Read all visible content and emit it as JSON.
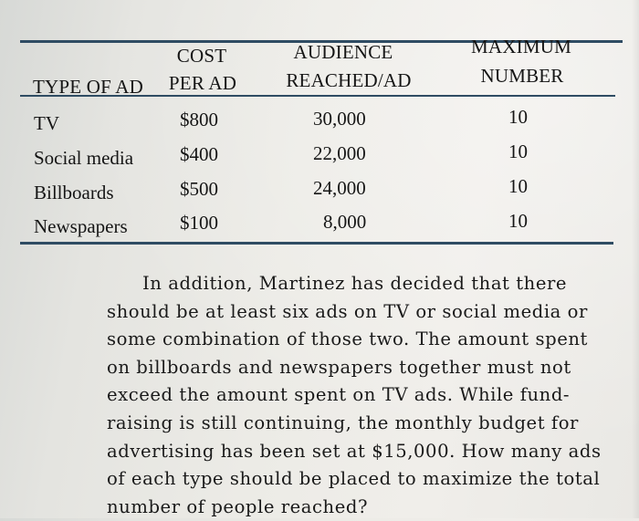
{
  "table": {
    "headers": {
      "type": [
        "TYPE OF AD"
      ],
      "cost": [
        "COST",
        "PER AD"
      ],
      "audience": [
        "AUDIENCE",
        "REACHED/AD"
      ],
      "maximum": [
        "MAXIMUM",
        "NUMBER"
      ]
    },
    "rows": [
      {
        "type": "TV",
        "cost": "$800",
        "audience": "30,000",
        "max": "10"
      },
      {
        "type": "Social media",
        "cost": "$400",
        "audience": "22,000",
        "max": "10"
      },
      {
        "type": "Billboards",
        "cost": "$500",
        "audience": "24,000",
        "max": "10"
      },
      {
        "type": "Newspapers",
        "cost": "$100",
        "audience": "8,000",
        "max": "10"
      }
    ]
  },
  "paragraph": {
    "lines": [
      "In addition, Martinez has decided that there",
      "should be at least six ads on TV or social media or",
      "some combination of those two. The amount spent",
      "on billboards and newspapers together must not",
      "exceed the amount spent on TV ads. While fund-",
      "raising is still continuing, the monthly budget for",
      "advertising has been set at $15,000. How many ads",
      "of each type should be placed to maximize the total",
      "number of people reached?"
    ]
  }
}
